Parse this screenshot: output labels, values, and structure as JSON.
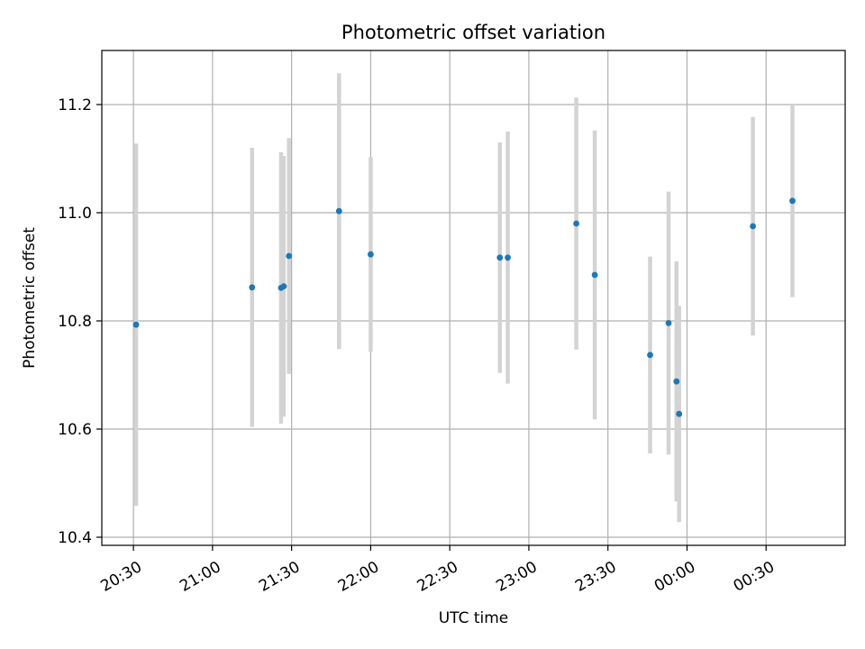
{
  "chart_data": {
    "type": "scatter",
    "title": "Photometric offset variation",
    "xlabel": "UTC time",
    "ylabel": "Photometric offset",
    "x_unit": "UTC time (HH:MM)",
    "xlim": [
      "20:18",
      "01:00"
    ],
    "ylim": [
      10.385,
      11.3
    ],
    "x_ticks": [
      "20:30",
      "21:00",
      "21:30",
      "22:00",
      "22:30",
      "23:00",
      "23:30",
      "00:00",
      "00:30"
    ],
    "y_ticks": [
      10.4,
      10.6,
      10.8,
      11.0,
      11.2
    ],
    "y_tick_labels": [
      "10.4",
      "10.6",
      "10.8",
      "11.0",
      "11.2"
    ],
    "grid": true,
    "colors": {
      "marker": "#1f77b4",
      "errorbar": "#d3d3d3",
      "grid": "#b0b0b0"
    },
    "points": [
      {
        "x": "20:31",
        "y": 10.793,
        "yerr": 0.335
      },
      {
        "x": "21:15",
        "y": 10.862,
        "yerr": 0.258
      },
      {
        "x": "21:26",
        "y": 10.861,
        "yerr": 0.251
      },
      {
        "x": "21:27",
        "y": 10.864,
        "yerr": 0.241
      },
      {
        "x": "21:29",
        "y": 10.92,
        "yerr": 0.218
      },
      {
        "x": "21:48",
        "y": 11.003,
        "yerr": 0.255
      },
      {
        "x": "22:00",
        "y": 10.923,
        "yerr": 0.18
      },
      {
        "x": "22:49",
        "y": 10.917,
        "yerr": 0.213
      },
      {
        "x": "22:52",
        "y": 10.917,
        "yerr": 0.233
      },
      {
        "x": "23:18",
        "y": 10.98,
        "yerr": 0.233
      },
      {
        "x": "23:25",
        "y": 10.885,
        "yerr": 0.267
      },
      {
        "x": "23:46",
        "y": 10.737,
        "yerr": 0.182
      },
      {
        "x": "23:53",
        "y": 10.796,
        "yerr": 0.243
      },
      {
        "x": "23:56",
        "y": 10.688,
        "yerr": 0.222
      },
      {
        "x": "23:57",
        "y": 10.628,
        "yerr": 0.2
      },
      {
        "x": "00:25",
        "y": 10.975,
        "yerr": 0.202
      },
      {
        "x": "00:40",
        "y": 11.022,
        "yerr": 0.178
      }
    ]
  }
}
